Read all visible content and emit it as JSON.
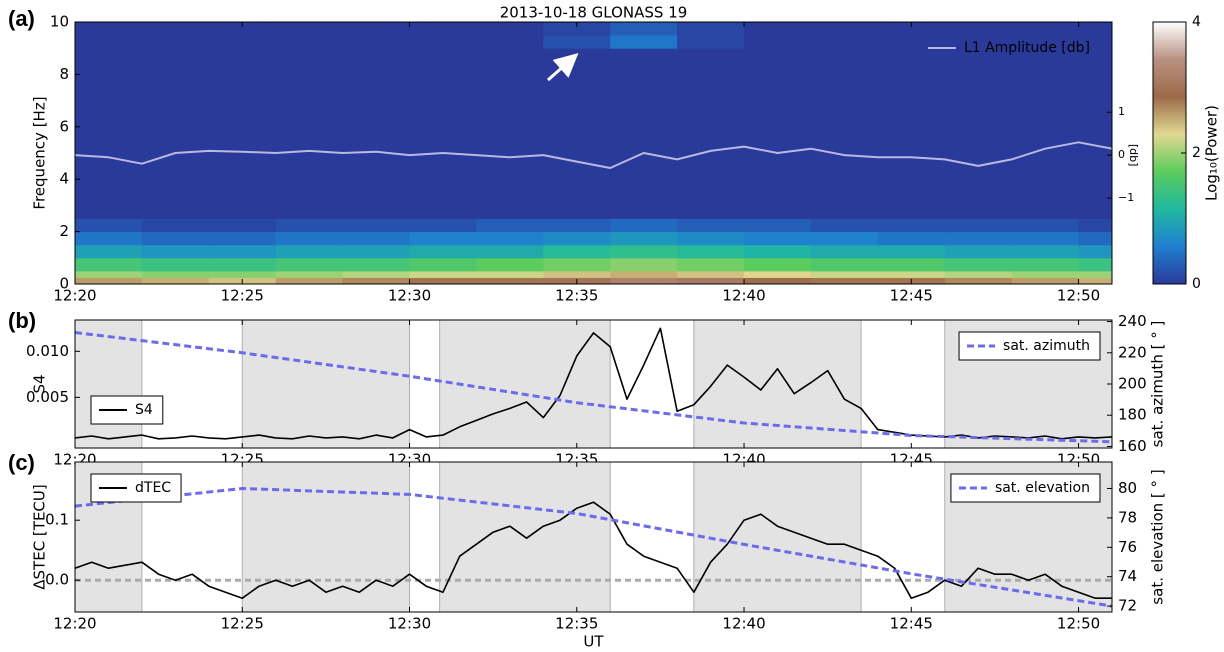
{
  "chart_data": [
    {
      "type": "heatmap",
      "panel_label": "(a)",
      "title": "2013-10-18 GLONASS 19",
      "ylabel": "Frequency [Hz]",
      "y2label": "[db]",
      "xlim": [
        740,
        771
      ],
      "xticks": [
        {
          "value": 740,
          "label": "12:20"
        },
        {
          "value": 745,
          "label": "12:25"
        },
        {
          "value": 750,
          "label": "12:30"
        },
        {
          "value": 755,
          "label": "12:35"
        },
        {
          "value": 760,
          "label": "12:40"
        },
        {
          "value": 765,
          "label": "12:45"
        },
        {
          "value": 770,
          "label": "12:50"
        }
      ],
      "ylim": [
        0,
        10
      ],
      "yticks": [
        0,
        2,
        4,
        6,
        8,
        10
      ],
      "y2lim": [
        -3.0,
        3.1
      ],
      "y2ticks": [
        1,
        0,
        {
          "value": -1,
          "label": "−1"
        }
      ],
      "x_bins": [
        740,
        742,
        744,
        746,
        748,
        750,
        752,
        754,
        756,
        758,
        760,
        762,
        764,
        766,
        768,
        770,
        771
      ],
      "y_bins": [
        0,
        0.25,
        0.5,
        1,
        1.5,
        2,
        2.5,
        9,
        9.5,
        10
      ],
      "z": [
        [
          2.6,
          2.5,
          2.4,
          2.6,
          2.7,
          2.8,
          2.8,
          3.0,
          3.2,
          3.1,
          2.9,
          2.8,
          2.8,
          2.7,
          2.6,
          2.5
        ],
        [
          2.0,
          1.9,
          1.9,
          2.0,
          2.1,
          2.2,
          2.2,
          2.4,
          2.5,
          2.4,
          2.3,
          2.2,
          2.2,
          2.1,
          2.0,
          2.0
        ],
        [
          1.5,
          1.4,
          1.4,
          1.5,
          1.5,
          1.6,
          1.7,
          1.8,
          1.9,
          1.8,
          1.7,
          1.6,
          1.6,
          1.5,
          1.5,
          1.4
        ],
        [
          0.9,
          0.8,
          0.8,
          0.9,
          0.9,
          1.0,
          1.0,
          1.2,
          1.3,
          1.2,
          1.1,
          1.0,
          1.0,
          0.9,
          0.9,
          0.8
        ],
        [
          0.5,
          0.4,
          0.4,
          0.5,
          0.5,
          0.6,
          0.6,
          0.7,
          0.8,
          0.7,
          0.6,
          0.6,
          0.5,
          0.5,
          0.5,
          0.4
        ],
        [
          0.2,
          0.1,
          0.1,
          0.2,
          0.2,
          0.2,
          0.3,
          0.3,
          0.4,
          0.3,
          0.3,
          0.2,
          0.2,
          0.2,
          0.2,
          0.1
        ],
        [
          0,
          0,
          0,
          0,
          0,
          0,
          0,
          0,
          0,
          0,
          0,
          0,
          0,
          0,
          0,
          0
        ],
        [
          0,
          0,
          0,
          0,
          0,
          0,
          0,
          0.2,
          0.5,
          0.1,
          0,
          0,
          0,
          0,
          0,
          0
        ],
        [
          0,
          0,
          0,
          0,
          0,
          0,
          0,
          0.1,
          0.3,
          0.1,
          0,
          0,
          0,
          0,
          0,
          0
        ]
      ],
      "clim": [
        0,
        4
      ],
      "cticks": [
        0,
        2,
        4
      ],
      "clabel": "Log₁₀(Power)",
      "colormap": [
        "#2a3a9a",
        "#1f7fd0",
        "#20b8a0",
        "#5ccc5c",
        "#e0d890",
        "#9c6a4a",
        "#b89080",
        "#ffffff"
      ],
      "legend_frame": false,
      "series": [
        {
          "name": "L1 Amplitude [db]",
          "color": "#b8b8e0",
          "axis": "y2",
          "legend_loc": "upper right",
          "x": [
            740,
            741,
            742,
            743,
            744,
            745,
            746,
            747,
            748,
            749,
            750,
            751,
            752,
            753,
            754,
            755,
            756,
            757,
            758,
            759,
            760,
            761,
            762,
            763,
            764,
            765,
            766,
            767,
            768,
            769,
            770,
            771
          ],
          "values": [
            0.0,
            -0.05,
            -0.2,
            0.05,
            0.1,
            0.08,
            0.05,
            0.1,
            0.05,
            0.08,
            0.0,
            0.05,
            0.0,
            -0.05,
            0.0,
            -0.15,
            -0.3,
            0.05,
            -0.1,
            0.1,
            0.2,
            0.05,
            0.15,
            0.0,
            -0.05,
            -0.05,
            -0.1,
            -0.25,
            -0.1,
            0.15,
            0.3,
            0.15
          ]
        }
      ]
    },
    {
      "type": "line",
      "panel_label": "(b)",
      "ylabel": "S4",
      "y2label": "sat. azimuth [ ° ]",
      "y2color": "#6b6bf0",
      "xlim": [
        740,
        771
      ],
      "xticks": [
        {
          "value": 740,
          "label": "12:20"
        },
        {
          "value": 745,
          "label": "12:25"
        },
        {
          "value": 750,
          "label": "12:30"
        },
        {
          "value": 755,
          "label": "12:35"
        },
        {
          "value": 760,
          "label": "12:40"
        },
        {
          "value": 765,
          "label": "12:45"
        },
        {
          "value": 770,
          "label": "12:50"
        }
      ],
      "ylim": [
        -0.0005,
        0.0134
      ],
      "yticks": [
        0.005,
        {
          "value": 0.01,
          "label": "0.010"
        }
      ],
      "y2lim": [
        159,
        241
      ],
      "y2ticks": [
        160,
        180,
        200,
        220,
        240
      ],
      "shaded_spans": [
        [
          740,
          742
        ],
        [
          745,
          750
        ],
        [
          750.9,
          756
        ],
        [
          758.5,
          763.5
        ],
        [
          766,
          771
        ]
      ],
      "legend_frame": true,
      "series": [
        {
          "name": "S4",
          "color": "#000000",
          "legend_loc": "lower left",
          "x": [
            740,
            740.5,
            741,
            741.5,
            742,
            742.5,
            743,
            743.5,
            744,
            744.5,
            745,
            745.5,
            746,
            746.5,
            747,
            747.5,
            748,
            748.5,
            749,
            749.5,
            750,
            750.5,
            751,
            751.5,
            752,
            752.5,
            753,
            753.5,
            754,
            754.5,
            755,
            755.5,
            756,
            756.5,
            757,
            757.5,
            758,
            758.5,
            759,
            759.5,
            760,
            760.5,
            761,
            761.5,
            762,
            762.5,
            763,
            763.5,
            764,
            764.5,
            765,
            765.5,
            766,
            766.5,
            767,
            767.5,
            768,
            768.5,
            769,
            769.5,
            770,
            770.5,
            771
          ],
          "values": [
            0.0006,
            0.0008,
            0.0005,
            0.0007,
            0.0009,
            0.0005,
            0.0006,
            0.0008,
            0.0006,
            0.0005,
            0.0007,
            0.0009,
            0.0006,
            0.0005,
            0.0008,
            0.0006,
            0.0007,
            0.0005,
            0.0009,
            0.0006,
            0.0015,
            0.0007,
            0.0009,
            0.0018,
            0.0025,
            0.0032,
            0.0038,
            0.0045,
            0.0028,
            0.0052,
            0.0095,
            0.012,
            0.0105,
            0.0048,
            0.0085,
            0.0125,
            0.0035,
            0.0042,
            0.0062,
            0.0085,
            0.0072,
            0.0058,
            0.0081,
            0.0054,
            0.0066,
            0.0079,
            0.0048,
            0.0038,
            0.0015,
            0.0012,
            0.0009,
            0.0008,
            0.0007,
            0.0009,
            0.0006,
            0.0008,
            0.0007,
            0.0006,
            0.0008,
            0.0005,
            0.0007,
            0.0006,
            0.0007
          ]
        },
        {
          "name": "sat. azimuth",
          "color": "#6b6bf0",
          "axis": "y2",
          "dashed": true,
          "legend_loc": "upper right",
          "x": [
            740,
            745,
            750,
            755,
            760,
            765,
            771
          ],
          "values": [
            233,
            220,
            205,
            188,
            175,
            167,
            163
          ]
        }
      ]
    },
    {
      "type": "line",
      "panel_label": "(c)",
      "ylabel": "ΔSTEC [TECU]",
      "y2label": "sat. elevation [ ° ]",
      "y2color": "#6b6bf0",
      "xlabel": "UT",
      "xlim": [
        740,
        771
      ],
      "xticks": [
        {
          "value": 740,
          "label": "12:20"
        },
        {
          "value": 745,
          "label": "12:25"
        },
        {
          "value": 750,
          "label": "12:30"
        },
        {
          "value": 755,
          "label": "12:35"
        },
        {
          "value": 760,
          "label": "12:40"
        },
        {
          "value": 765,
          "label": "12:45"
        },
        {
          "value": 770,
          "label": "12:50"
        }
      ],
      "ylim": [
        -0.053,
        0.197
      ],
      "yticks": [
        {
          "value": 0,
          "label": "0.0"
        },
        0.1
      ],
      "y2lim": [
        71.6,
        81.8
      ],
      "y2ticks": [
        72,
        74,
        76,
        78,
        80
      ],
      "hline": 0,
      "shaded_spans": [
        [
          740,
          742
        ],
        [
          745,
          750
        ],
        [
          750.9,
          756
        ],
        [
          758.5,
          763.5
        ],
        [
          766,
          771
        ]
      ],
      "legend_frame": true,
      "series": [
        {
          "name": "dTEC",
          "color": "#000000",
          "legend_loc": "upper left",
          "x": [
            740,
            740.5,
            741,
            741.5,
            742,
            742.5,
            743,
            743.5,
            744,
            744.5,
            745,
            745.5,
            746,
            746.5,
            747,
            747.5,
            748,
            748.5,
            749,
            749.5,
            750,
            750.5,
            751,
            751.5,
            752,
            752.5,
            753,
            753.5,
            754,
            754.5,
            755,
            755.5,
            756,
            756.5,
            757,
            757.5,
            758,
            758.5,
            759,
            759.5,
            760,
            760.5,
            761,
            761.5,
            762,
            762.5,
            763,
            763.5,
            764,
            764.5,
            765,
            765.5,
            766,
            766.5,
            767,
            767.5,
            768,
            768.5,
            769,
            769.5,
            770,
            770.5,
            771
          ],
          "values": [
            0.02,
            0.03,
            0.02,
            0.025,
            0.03,
            0.01,
            0.0,
            0.01,
            -0.01,
            -0.02,
            -0.03,
            -0.01,
            0.0,
            -0.01,
            0.0,
            -0.02,
            -0.01,
            -0.02,
            0.0,
            -0.01,
            0.01,
            -0.01,
            -0.02,
            0.04,
            0.06,
            0.08,
            0.09,
            0.07,
            0.09,
            0.1,
            0.12,
            0.13,
            0.11,
            0.06,
            0.04,
            0.03,
            0.02,
            -0.02,
            0.03,
            0.06,
            0.1,
            0.11,
            0.09,
            0.08,
            0.07,
            0.06,
            0.06,
            0.05,
            0.04,
            0.02,
            -0.03,
            -0.02,
            0.0,
            -0.01,
            0.02,
            0.01,
            0.01,
            0.0,
            0.01,
            -0.01,
            -0.02,
            -0.03,
            -0.03
          ]
        },
        {
          "name": "sat. elevation",
          "color": "#6b6bf0",
          "axis": "y2",
          "dashed": true,
          "legend_loc": "upper right",
          "x": [
            740,
            745,
            750,
            755,
            760,
            765,
            771
          ],
          "values": [
            78.8,
            80.0,
            79.6,
            78.3,
            76.2,
            74.2,
            72.0
          ]
        }
      ]
    }
  ]
}
